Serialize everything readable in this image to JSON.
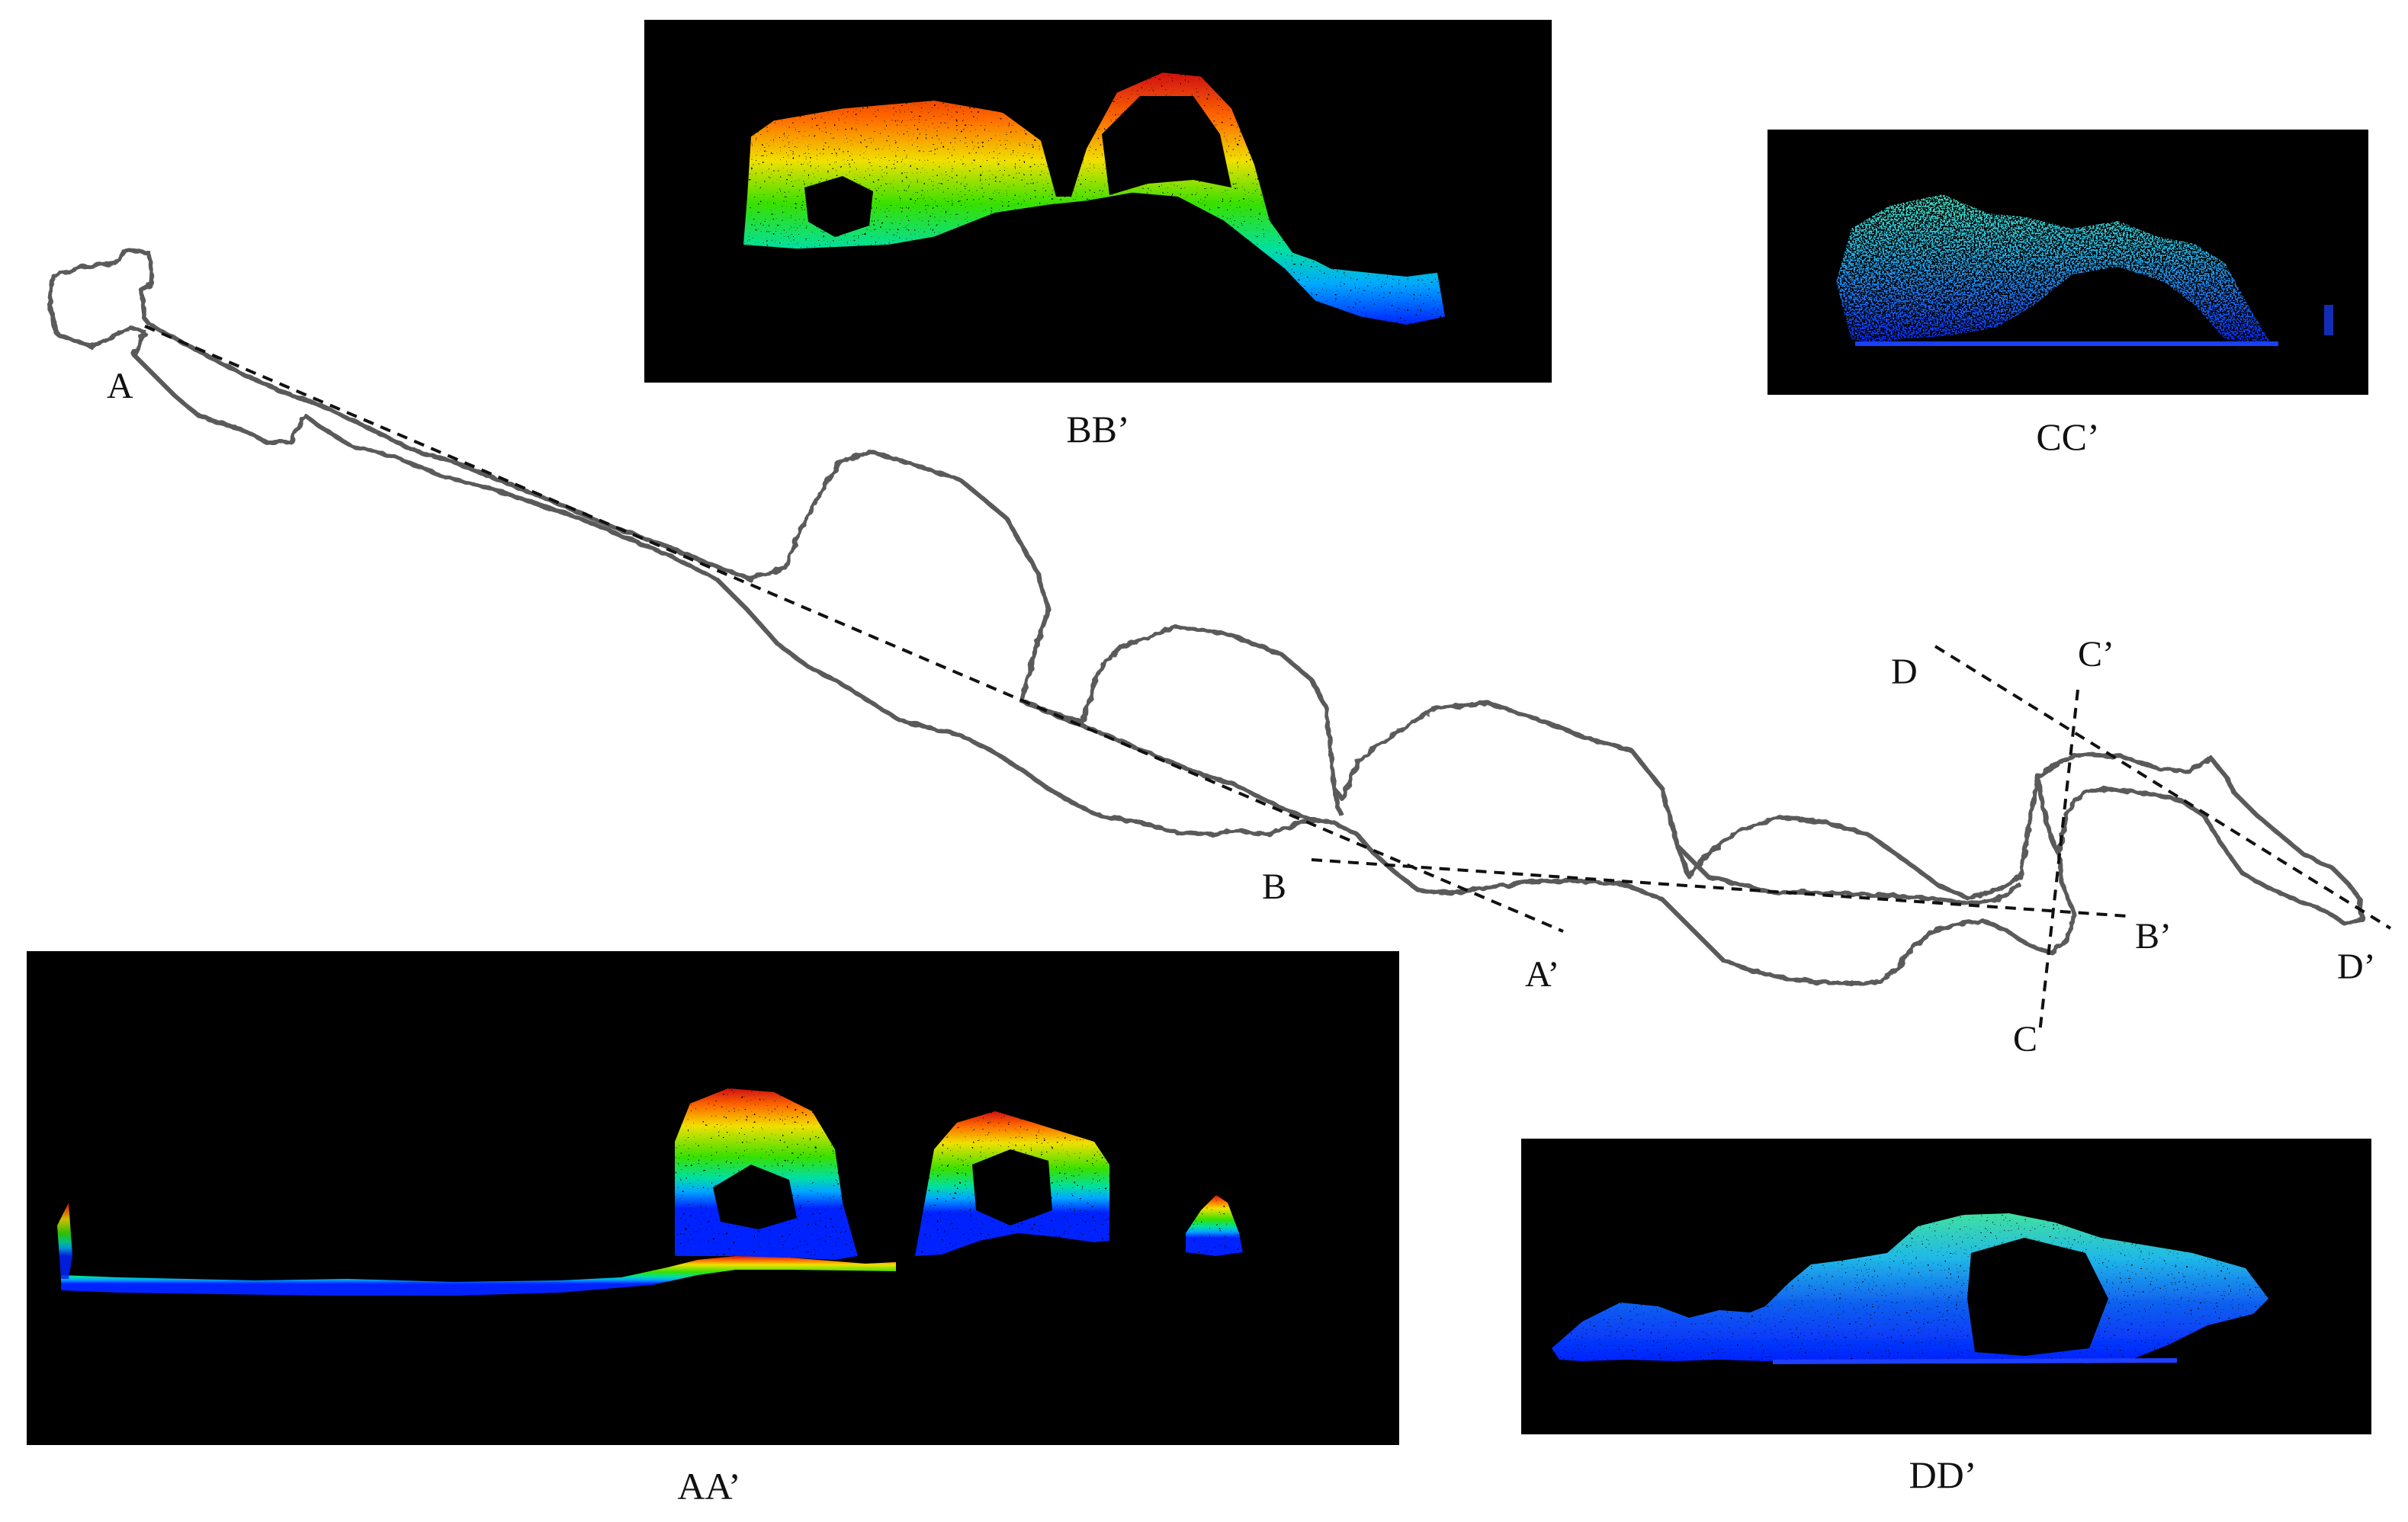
{
  "map": {
    "section_labels": {
      "A": "A",
      "A_prime": "A’",
      "B": "B",
      "B_prime": "B’",
      "C": "C",
      "C_prime": "C’",
      "D": "D",
      "D_prime": "D’"
    },
    "outline_color": "#5a5a5a",
    "section_line_color": "#111111"
  },
  "panels": {
    "BB": {
      "caption": "BB’",
      "colormap": "jet",
      "background": "#000000"
    },
    "CC": {
      "caption": "CC’",
      "colormap": "jet",
      "background": "#000000"
    },
    "AA": {
      "caption": "AA’",
      "colormap": "jet",
      "background": "#000000"
    },
    "DD": {
      "caption": "DD’",
      "colormap": "jet",
      "background": "#000000"
    }
  }
}
